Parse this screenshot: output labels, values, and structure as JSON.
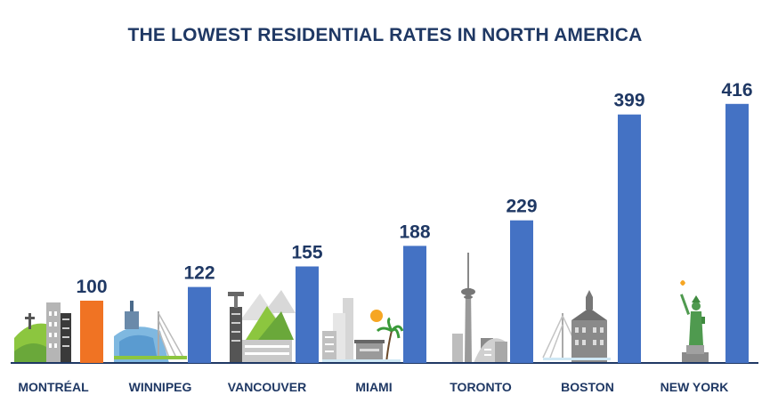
{
  "chart_data": {
    "type": "bar",
    "title": "THE LOWEST RESIDENTIAL RATES IN NORTH AMERICA",
    "categories": [
      "MONTRÉAL",
      "WINNIPEG",
      "VANCOUVER",
      "MIAMI",
      "TORONTO",
      "BOSTON",
      "NEW YORK"
    ],
    "values": [
      100,
      122,
      155,
      188,
      229,
      399,
      416
    ],
    "bar_colors": [
      "#f07323",
      "#4472c4",
      "#4472c4",
      "#4472c4",
      "#4472c4",
      "#4472c4",
      "#4472c4"
    ],
    "highlight": "MONTRÉAL",
    "icons": [
      "montreal-skyline-icon",
      "winnipeg-skyline-icon",
      "vancouver-skyline-icon",
      "miami-skyline-icon",
      "toronto-skyline-icon",
      "boston-skyline-icon",
      "new-york-skyline-icon"
    ],
    "grid": false,
    "legend": "none"
  }
}
